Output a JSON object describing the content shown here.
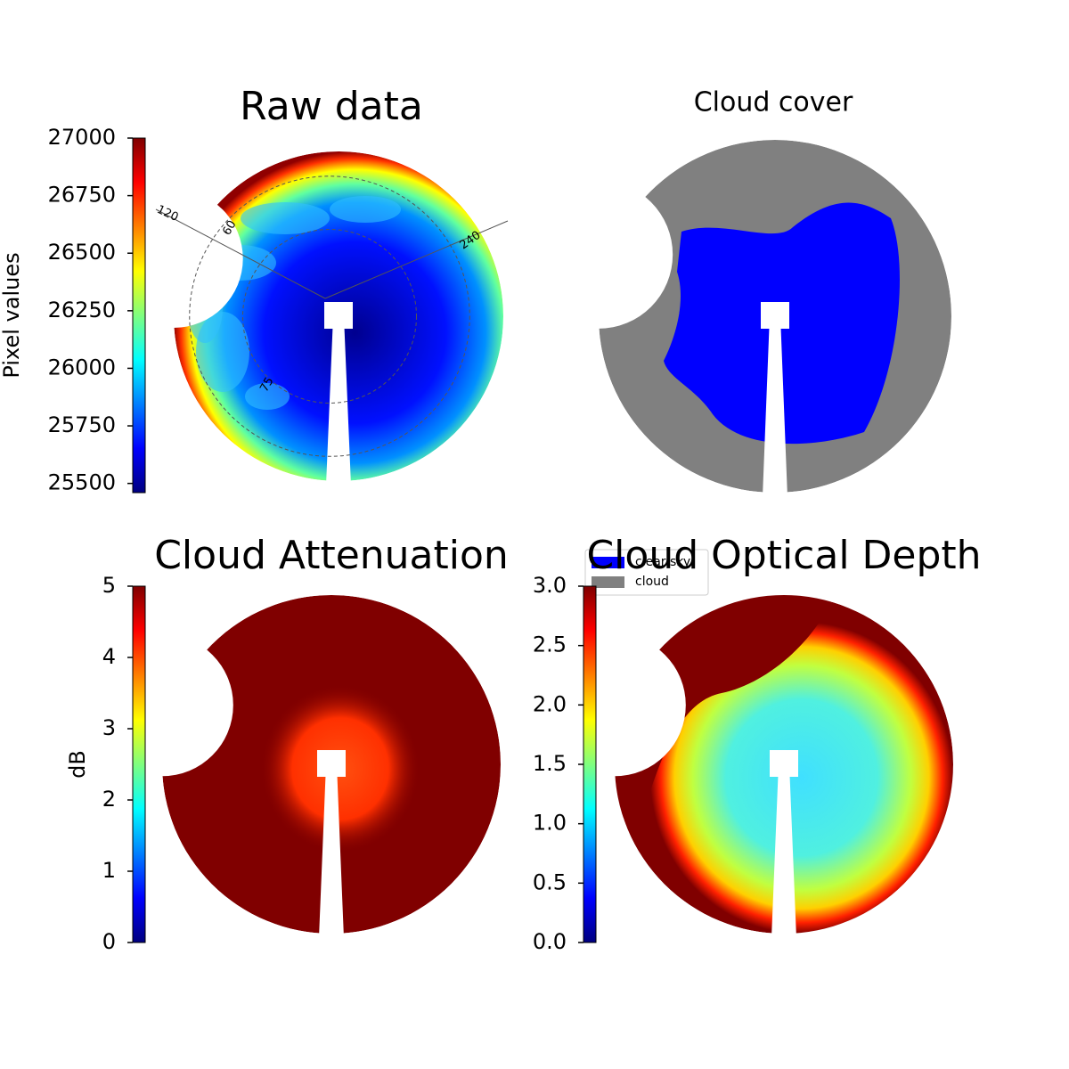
{
  "chart_data": [
    {
      "type": "image",
      "title": "Raw data",
      "colormap": "jet",
      "colorbar": {
        "label": "Pixel values",
        "lim": [
          25460,
          27000
        ],
        "ticks": [
          25500,
          25750,
          26000,
          26250,
          26500,
          26750,
          27000
        ]
      },
      "annotations": [
        "120",
        "60",
        "240",
        "75"
      ]
    },
    {
      "type": "classes",
      "title": "Cloud cover",
      "legend": [
        {
          "name": "clear sky",
          "color": "#0000ff"
        },
        {
          "name": "cloud",
          "color": "#808080"
        }
      ]
    },
    {
      "type": "image",
      "title": "Cloud Attenuation",
      "colormap": "jet",
      "colorbar": {
        "label": "dB",
        "lim": [
          0,
          5
        ],
        "ticks": [
          0,
          1,
          2,
          3,
          4,
          5
        ]
      }
    },
    {
      "type": "image",
      "title": "Cloud Optical Depth",
      "colormap": "jet",
      "colorbar": {
        "lim": [
          0,
          3
        ],
        "ticks": [
          {
            "value": 0,
            "label": "0.0"
          },
          0.5,
          {
            "value": 1,
            "label": "1.0"
          },
          1.5,
          {
            "value": 2,
            "label": "2.0"
          },
          2.5,
          {
            "value": 3,
            "label": "3.0"
          }
        ]
      }
    }
  ]
}
